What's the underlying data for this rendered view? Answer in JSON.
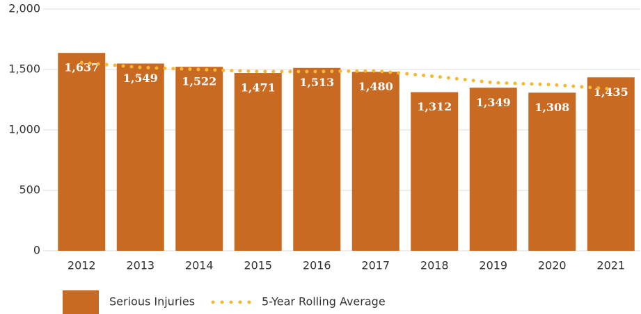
{
  "chart_data": {
    "type": "bar",
    "categories": [
      "2012",
      "2013",
      "2014",
      "2015",
      "2016",
      "2017",
      "2018",
      "2019",
      "2020",
      "2021"
    ],
    "series": [
      {
        "name": "Serious Injuries",
        "type": "bar",
        "color": "#c96a22",
        "values": [
          1637,
          1549,
          1522,
          1471,
          1513,
          1480,
          1312,
          1349,
          1308,
          1435
        ],
        "value_labels": [
          "1,637",
          "1,549",
          "1,522",
          "1,471",
          "1,513",
          "1,480",
          "1,312",
          "1,349",
          "1,308",
          "1,435"
        ]
      },
      {
        "name": "5-Year Rolling Average",
        "type": "line",
        "color": "#f5b82e",
        "values": [
          1557,
          1517,
          1500,
          1483,
          1483,
          1488,
          1443,
          1391,
          1374,
          1339
        ]
      }
    ],
    "ylim": [
      0,
      2000
    ],
    "yticks": [
      0,
      500,
      {
        "value": 1000,
        "label": "1,000"
      },
      {
        "value": 1500,
        "label": "1,500"
      },
      {
        "value": 2000,
        "label": "2,000"
      }
    ],
    "grid": true
  }
}
